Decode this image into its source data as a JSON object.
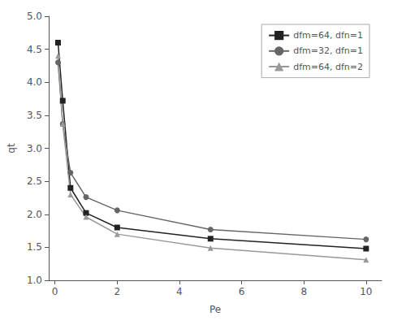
{
  "chart_data": {
    "type": "line",
    "xlabel": "Pe",
    "ylabel": "qt",
    "x": [
      0.1,
      0.25,
      0.5,
      1.0,
      2.0,
      5.0,
      10.0
    ],
    "series": [
      {
        "name": "dfm=64, dfn=1",
        "color": "#222222",
        "marker": "square",
        "line_style": "solid",
        "values": [
          4.6,
          3.72,
          2.4,
          2.02,
          1.8,
          1.63,
          1.48
        ]
      },
      {
        "name": "dfm=32, dfn=1",
        "color": "#666666",
        "marker": "circle",
        "line_style": "solid",
        "values": [
          4.3,
          3.37,
          2.63,
          2.26,
          2.06,
          1.77,
          1.62
        ]
      },
      {
        "name": "dfm=64, dfn=2",
        "color": "#999999",
        "marker": "triangle",
        "line_style": "solid",
        "values": [
          4.4,
          3.37,
          2.3,
          1.96,
          1.7,
          1.49,
          1.31
        ]
      }
    ],
    "xlim": [
      -0.2,
      10.5
    ],
    "ylim": [
      1.0,
      5.0
    ],
    "xticks": [
      0,
      2,
      4,
      6,
      8,
      10
    ],
    "yticks": [
      {
        "value": 1.0,
        "label": "1.0"
      },
      1.5,
      {
        "value": 2.0,
        "label": "2.0"
      },
      2.5,
      {
        "value": 3.0,
        "label": "3.0"
      },
      3.5,
      {
        "value": 4.0,
        "label": "4.0"
      },
      4.5,
      {
        "value": 5.0,
        "label": "5.0"
      }
    ],
    "grid": false,
    "legend": "upper right"
  }
}
